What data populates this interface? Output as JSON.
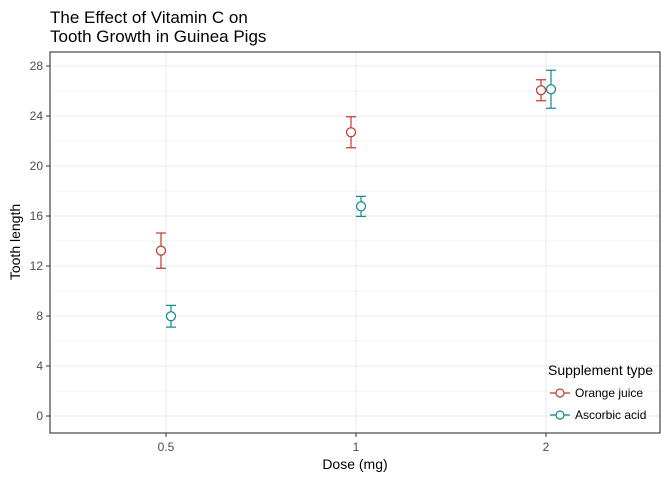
{
  "chart_data": {
    "type": "scatter",
    "title_lines": [
      "The Effect of Vitamin C on",
      "Tooth Growth in Guinea Pigs"
    ],
    "xlabel": "Dose (mg)",
    "ylabel": "Tooth length",
    "categories": [
      "0.5",
      "1",
      "2"
    ],
    "yticks": [
      "0",
      "4",
      "8",
      "12",
      "16",
      "20",
      "24",
      "28"
    ],
    "ylim": [
      -1.2,
      29.1
    ],
    "grid": true,
    "legend": {
      "title": "Supplement type",
      "placement": "bottom-right"
    },
    "series": [
      {
        "name": "Orange juice",
        "color": "#C0392B",
        "mean": [
          13.23,
          22.7,
          26.06
        ],
        "se": [
          1.41,
          1.24,
          0.84
        ]
      },
      {
        "name": "Ascorbic acid",
        "color": "#0E8A8A",
        "mean": [
          7.98,
          16.77,
          26.14
        ],
        "se": [
          0.87,
          0.8,
          1.52
        ]
      }
    ]
  }
}
